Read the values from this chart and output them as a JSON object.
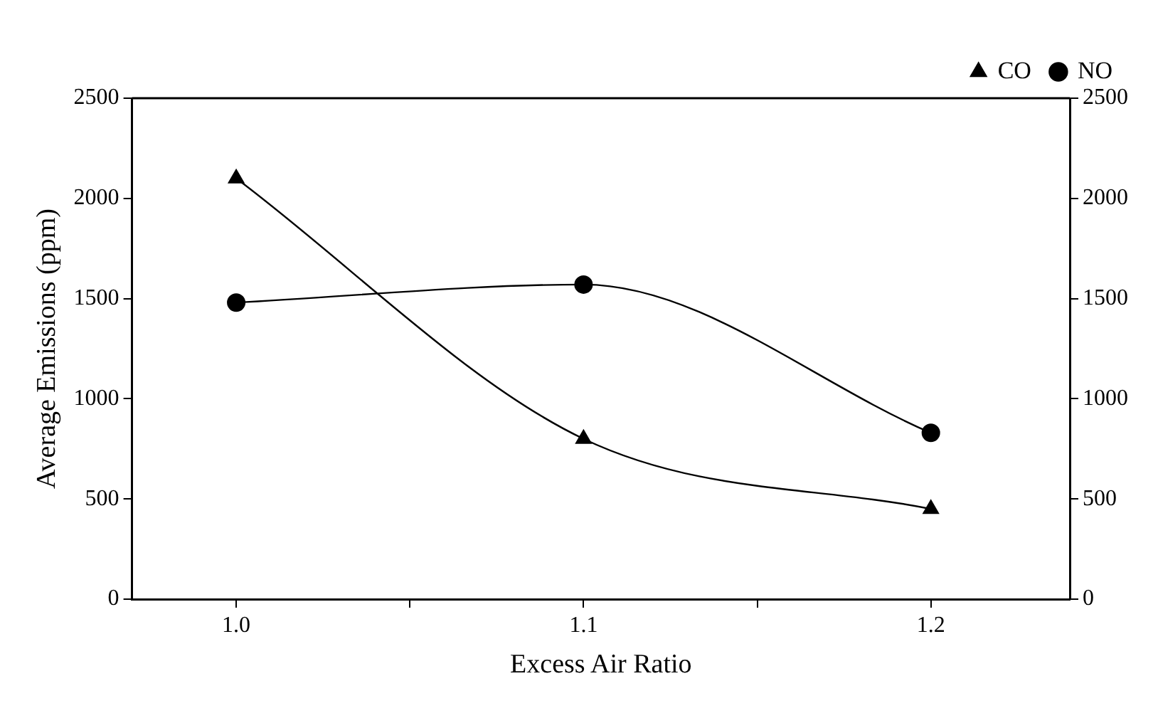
{
  "chart_data": {
    "type": "line",
    "xlabel": "Excess Air Ratio",
    "ylabel": "Average Emissions (ppm)",
    "xlim": [
      0.97,
      1.24
    ],
    "xticks": [
      {
        "value": 1.0,
        "label": "1.0"
      },
      {
        "value": 1.05,
        "label": null
      },
      {
        "value": 1.1,
        "label": "1.1"
      },
      {
        "value": 1.15,
        "label": null
      },
      {
        "value": 1.2,
        "label": "1.2"
      }
    ],
    "ylim": [
      0,
      2500
    ],
    "yticks": [
      0,
      500,
      1000,
      1500,
      2000,
      2500
    ],
    "y2lim": [
      0,
      2500
    ],
    "y2ticks": [
      0,
      500,
      1000,
      1500,
      2000,
      2500
    ],
    "x": [
      1.0,
      1.1,
      1.2
    ],
    "series": [
      {
        "name": "CO",
        "color": "#000000",
        "marker": "triangle",
        "values": [
          2100,
          800,
          450
        ]
      },
      {
        "name": "NO",
        "color": "#000000",
        "marker": "circle",
        "values": [
          1480,
          1570,
          830
        ]
      }
    ],
    "grid": false,
    "legend": "top right",
    "line_style": "solid"
  }
}
